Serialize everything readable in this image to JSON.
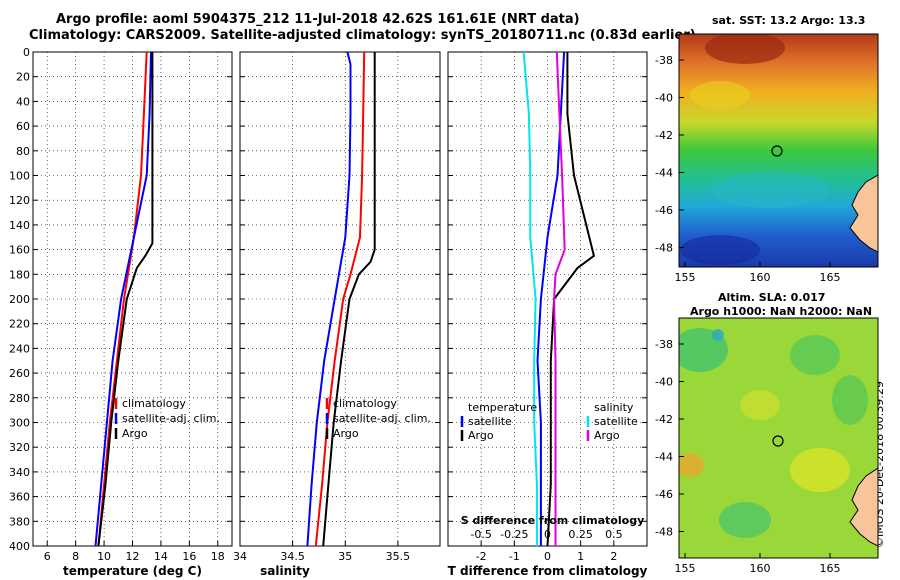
{
  "header": {
    "line1": "Argo profile: aoml 5904375_212 11-Jul-2018 42.62S 161.61E (NRT data)",
    "line2": "Climatology: CARS2009. Satellite-adjusted climatology: synTS_20180711.nc (0.83d earlier)"
  },
  "sst_map": {
    "title": "sat. SST: 13.2 Argo: 13.3",
    "x_ticks": [
      "155",
      "160",
      "165"
    ],
    "y_ticks": [
      "-38",
      "-40",
      "-42",
      "-44",
      "-46",
      "-48"
    ]
  },
  "sla_map": {
    "title_line1": "Altim. SLA: 0.017",
    "title_line2": "Argo h1000: NaN h2000: NaN",
    "x_ticks": [
      "155",
      "160",
      "165"
    ],
    "y_ticks": [
      "-38",
      "-40",
      "-42",
      "-44",
      "-46",
      "-48"
    ]
  },
  "footer": {
    "stamp": "©IMOS 20-Dec-2018 00:39:29"
  },
  "colors": {
    "climatology": "#ff0000",
    "satellite_adj": "#0000ff",
    "argo": "#000000",
    "satellite_s": "#00e5ee",
    "argo_s": "#e000e0"
  },
  "chart_data": [
    {
      "type": "line",
      "name": "temperature-profile",
      "xlabel": "temperature (deg C)",
      "ylabel": "",
      "xlim": [
        5,
        19
      ],
      "ylim": [
        400,
        0
      ],
      "x_ticks": [
        6,
        8,
        10,
        12,
        14,
        16,
        18
      ],
      "y_ticks": [
        0,
        20,
        40,
        60,
        80,
        100,
        120,
        140,
        160,
        180,
        200,
        220,
        240,
        260,
        280,
        300,
        320,
        340,
        360,
        380,
        400
      ],
      "legend": [
        "climatology",
        "satellite-adj. clim.",
        "Argo"
      ],
      "series": [
        {
          "name": "climatology",
          "depth": [
            0,
            50,
            100,
            150,
            200,
            250,
            300,
            350,
            400
          ],
          "values": [
            13.0,
            12.8,
            12.6,
            12.1,
            11.4,
            10.9,
            10.4,
            10.0,
            9.6
          ]
        },
        {
          "name": "satellite-adj. clim.",
          "depth": [
            0,
            50,
            100,
            150,
            200,
            250,
            300,
            350,
            400
          ],
          "values": [
            13.3,
            13.2,
            13.0,
            12.1,
            11.2,
            10.6,
            10.2,
            9.8,
            9.4
          ]
        },
        {
          "name": "Argo",
          "depth": [
            0,
            50,
            100,
            155,
            165,
            175,
            200,
            250,
            300,
            350,
            400
          ],
          "values": [
            13.4,
            13.4,
            13.4,
            13.4,
            12.9,
            12.3,
            11.6,
            11.0,
            10.5,
            10.1,
            9.6
          ]
        }
      ]
    },
    {
      "type": "line",
      "name": "salinity-profile",
      "xlabel": "salinity",
      "xlim": [
        34,
        35.9
      ],
      "ylim": [
        400,
        0
      ],
      "x_ticks": [
        34,
        34.5,
        35,
        35.5
      ],
      "x_tick_labels": [
        "34",
        "34.5",
        "35",
        "35.5"
      ],
      "legend": [
        "climatology",
        "satellite-adj. clim.",
        "Argo"
      ],
      "series": [
        {
          "name": "climatology",
          "depth": [
            0,
            50,
            100,
            150,
            180,
            200,
            250,
            300,
            350,
            400
          ],
          "values": [
            35.18,
            35.17,
            35.16,
            35.14,
            35.05,
            34.98,
            34.9,
            34.83,
            34.78,
            34.72
          ]
        },
        {
          "name": "satellite-adj. clim.",
          "depth": [
            0,
            10,
            50,
            100,
            150,
            200,
            250,
            300,
            350,
            400
          ],
          "values": [
            35.02,
            35.05,
            35.05,
            35.04,
            35.0,
            34.9,
            34.8,
            34.73,
            34.68,
            34.64
          ]
        },
        {
          "name": "Argo",
          "depth": [
            0,
            50,
            100,
            160,
            170,
            180,
            200,
            250,
            300,
            350,
            400
          ],
          "values": [
            35.28,
            35.28,
            35.28,
            35.28,
            35.24,
            35.13,
            35.04,
            34.96,
            34.89,
            34.84,
            34.79
          ]
        }
      ]
    },
    {
      "type": "line",
      "name": "difference-profile",
      "xlabel": "T difference from climatology",
      "xlabel_top": "S difference from climatology",
      "xlim": [
        -3,
        3
      ],
      "ylim": [
        400,
        0
      ],
      "x_ticks": [
        -2,
        -1,
        0,
        1,
        2
      ],
      "top_ticks": [
        -0.5,
        -0.25,
        0,
        0.25,
        0.5
      ],
      "top_tick_labels": [
        "-0.5",
        "-0.25",
        "0",
        "0.25",
        "0.5"
      ],
      "legend_temperature": {
        "heading": "temperature",
        "items": [
          "satellite",
          "Argo"
        ]
      },
      "legend_salinity": {
        "heading": "salinity",
        "items": [
          "satellite",
          "Argo"
        ]
      },
      "series": [
        {
          "name": "T satellite",
          "depth": [
            0,
            50,
            100,
            150,
            200,
            250,
            300,
            350,
            400
          ],
          "values": [
            0.5,
            0.4,
            0.3,
            0.0,
            -0.2,
            -0.3,
            -0.2,
            -0.2,
            -0.2
          ]
        },
        {
          "name": "T Argo",
          "depth": [
            0,
            50,
            100,
            165,
            175,
            200,
            250,
            300,
            350,
            400
          ],
          "values": [
            0.6,
            0.6,
            0.8,
            1.4,
            0.9,
            0.2,
            0.1,
            0.1,
            0.1,
            0.0
          ]
        },
        {
          "name": "S satellite",
          "depth": [
            0,
            50,
            100,
            150,
            200,
            250,
            300,
            350,
            400
          ],
          "values": [
            -0.18,
            -0.14,
            -0.13,
            -0.13,
            -0.09,
            -0.1,
            -0.1,
            -0.08,
            -0.08
          ]
        },
        {
          "name": "S Argo",
          "depth": [
            0,
            50,
            100,
            160,
            180,
            200,
            250,
            300,
            350,
            400
          ],
          "values": [
            0.07,
            0.09,
            0.11,
            0.13,
            0.06,
            0.05,
            0.06,
            0.06,
            0.06,
            0.06
          ]
        }
      ]
    }
  ]
}
